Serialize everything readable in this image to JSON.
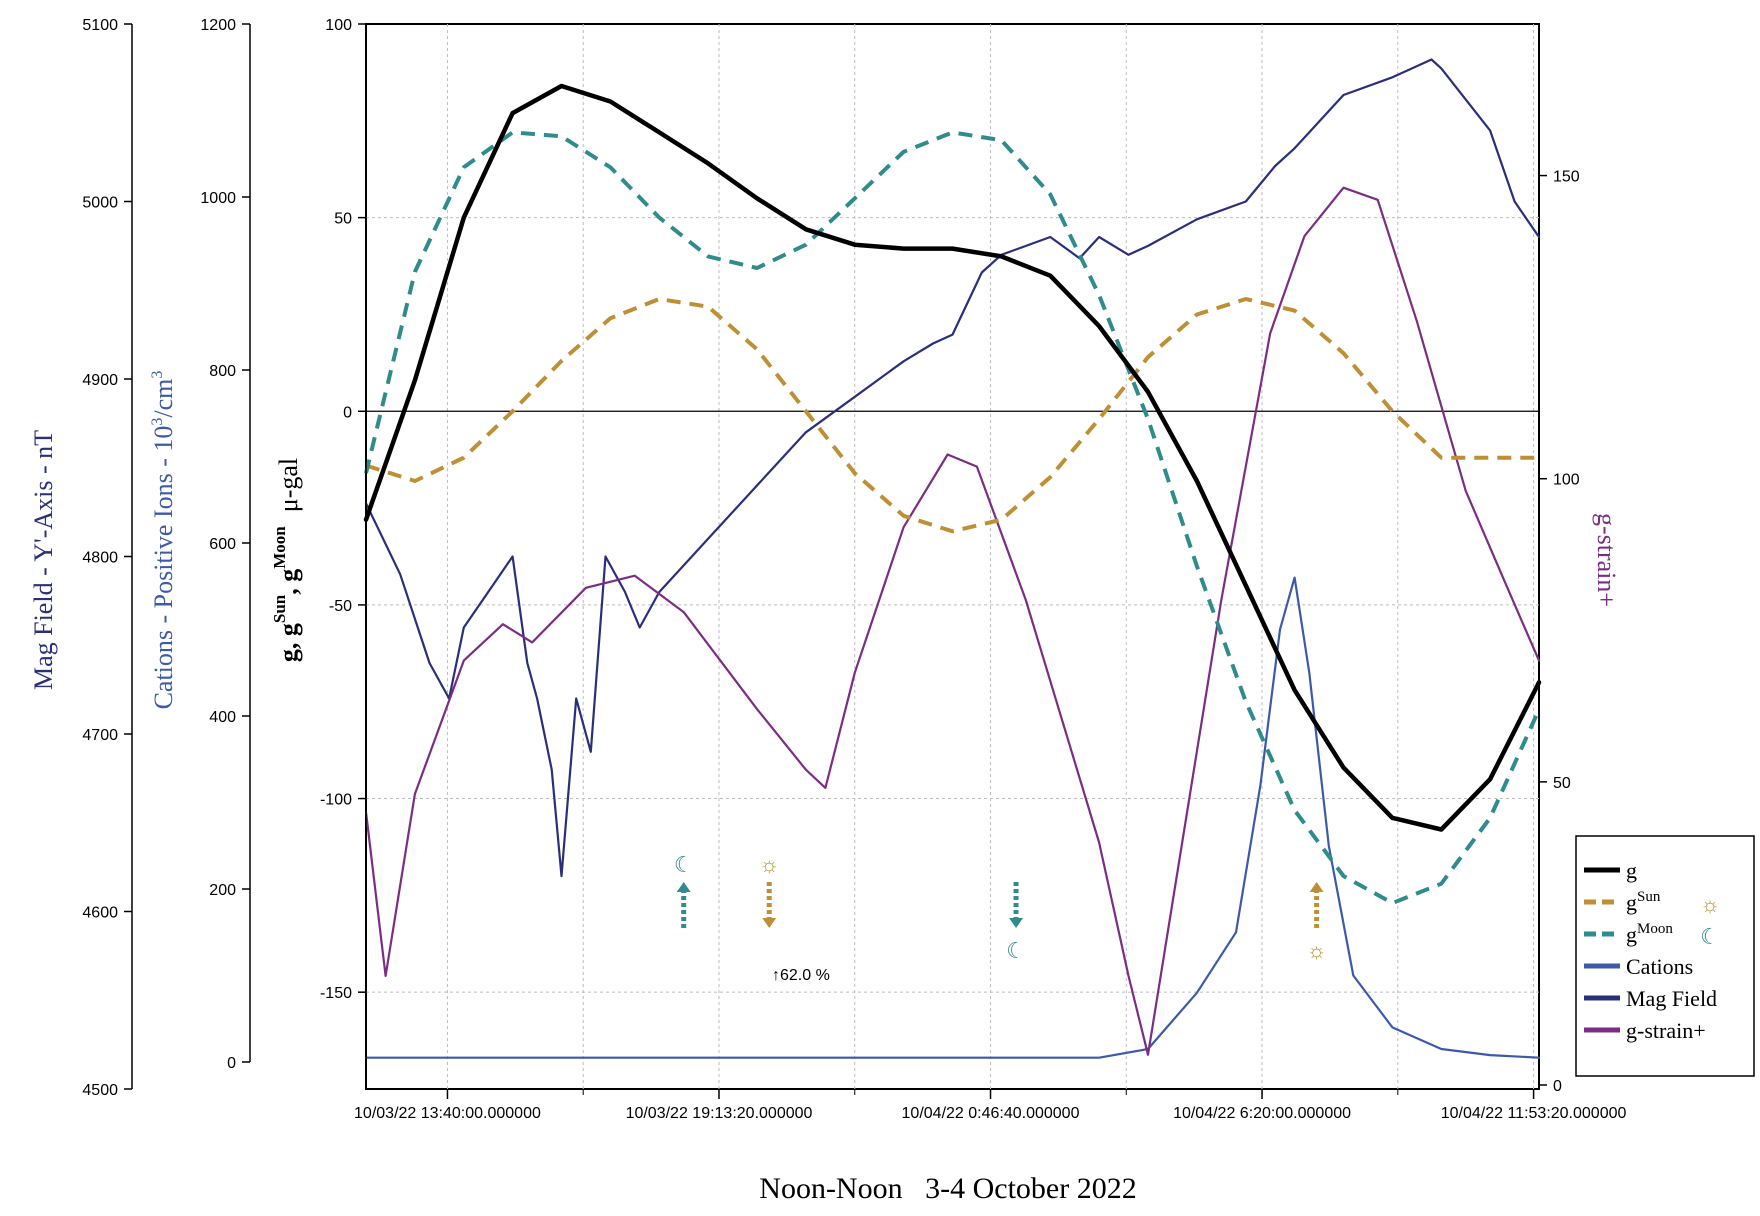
{
  "chart_data": {
    "type": "line",
    "title": "Noon-Noon   3-4 October 2022",
    "x_ticks": [
      "10/03/22 13:40:00.000000",
      "10/03/22 19:13:20.000000",
      "10/04/22  0:46:40.000000",
      "10/04/22  6:20:00.000000",
      "10/04/22 11:53:20.000000"
    ],
    "x_range_hours": [
      12,
      36
    ],
    "axes": {
      "mag": {
        "label": "Mag Field - Y'-Axis - nT",
        "ticks": [
          "4500",
          "4600",
          "4700",
          "4800",
          "4900",
          "5000",
          "5100"
        ],
        "range": [
          4500,
          5100
        ],
        "color": "#2b2f7a"
      },
      "cations": {
        "label_main": "Cations - Positive Ions - 10",
        "label_sup": "3",
        "label_tail": "/cm",
        "label_sup2": "3",
        "ticks": [
          "0",
          "200",
          "400",
          "600",
          "800",
          "1000",
          "1200"
        ],
        "range": [
          0,
          1200
        ],
        "color": "#3c5aa8"
      },
      "g": {
        "label_g": "g,  g",
        "label_sun_sup": "Sun",
        "label_moon_g": ",  g",
        "label_moon_sup": "Moon",
        "label_unit": "μ-gal",
        "ticks": [
          "-150",
          "-100",
          "-50",
          "0",
          "50",
          "100"
        ],
        "range": [
          -175,
          100
        ],
        "color": "#000000"
      },
      "strain": {
        "label": "g-strain+",
        "ticks": [
          "0",
          "50",
          "100",
          "150"
        ],
        "range": [
          0,
          175
        ],
        "color": "#7b2d84"
      }
    },
    "series": [
      {
        "name": "g",
        "color": "#000000",
        "dash": "solid",
        "axis": "g",
        "points": [
          [
            12,
            -28
          ],
          [
            13,
            8
          ],
          [
            14,
            50
          ],
          [
            15,
            77
          ],
          [
            16,
            84
          ],
          [
            17,
            80
          ],
          [
            18,
            72
          ],
          [
            19,
            64
          ],
          [
            20,
            55
          ],
          [
            21,
            47
          ],
          [
            22,
            43
          ],
          [
            23,
            42
          ],
          [
            24,
            42
          ],
          [
            25,
            40
          ],
          [
            26,
            35
          ],
          [
            27,
            22
          ],
          [
            28,
            5
          ],
          [
            29,
            -18
          ],
          [
            30,
            -45
          ],
          [
            31,
            -72
          ],
          [
            32,
            -92
          ],
          [
            33,
            -105
          ],
          [
            34,
            -108
          ],
          [
            35,
            -95
          ],
          [
            36,
            -70
          ]
        ]
      },
      {
        "name": "g^Sun",
        "color": "#bf8f35",
        "dash": "dash",
        "axis": "g",
        "points": [
          [
            12,
            -14
          ],
          [
            13,
            -18
          ],
          [
            14,
            -12
          ],
          [
            15,
            0
          ],
          [
            16,
            13
          ],
          [
            17,
            24
          ],
          [
            18,
            29
          ],
          [
            19,
            27
          ],
          [
            20,
            16
          ],
          [
            21,
            0
          ],
          [
            22,
            -16
          ],
          [
            23,
            -27
          ],
          [
            24,
            -31
          ],
          [
            25,
            -28
          ],
          [
            26,
            -17
          ],
          [
            27,
            -2
          ],
          [
            28,
            14
          ],
          [
            29,
            25
          ],
          [
            30,
            29
          ],
          [
            31,
            26
          ],
          [
            32,
            15
          ],
          [
            33,
            0
          ],
          [
            34,
            -12
          ],
          [
            36,
            -12
          ]
        ]
      },
      {
        "name": "g^Moon",
        "color": "#2f8b8c",
        "dash": "dash",
        "axis": "g",
        "points": [
          [
            12,
            -16
          ],
          [
            13,
            36
          ],
          [
            14,
            63
          ],
          [
            15,
            72
          ],
          [
            16,
            71
          ],
          [
            17,
            63
          ],
          [
            18,
            50
          ],
          [
            19,
            40
          ],
          [
            20,
            37
          ],
          [
            21,
            43
          ],
          [
            22,
            55
          ],
          [
            23,
            67
          ],
          [
            24,
            72
          ],
          [
            25,
            70
          ],
          [
            26,
            56
          ],
          [
            27,
            30
          ],
          [
            28,
            -2
          ],
          [
            29,
            -40
          ],
          [
            30,
            -75
          ],
          [
            31,
            -103
          ],
          [
            32,
            -120
          ],
          [
            33,
            -127
          ],
          [
            34,
            -122
          ],
          [
            35,
            -105
          ],
          [
            36,
            -77
          ]
        ]
      },
      {
        "name": "Cations",
        "color": "#3c5aa8",
        "dash": "solid",
        "axis": "cations",
        "points": [
          [
            12,
            5
          ],
          [
            27,
            5
          ],
          [
            28,
            15
          ],
          [
            29,
            80
          ],
          [
            29.8,
            150
          ],
          [
            30.3,
            320
          ],
          [
            30.7,
            500
          ],
          [
            31,
            560
          ],
          [
            31.3,
            450
          ],
          [
            31.7,
            250
          ],
          [
            32.2,
            100
          ],
          [
            33,
            40
          ],
          [
            34,
            15
          ],
          [
            35,
            8
          ],
          [
            36,
            5
          ]
        ]
      },
      {
        "name": "Mag Field",
        "color": "#2b2f7a",
        "dash": "solid",
        "axis": "mag",
        "points": [
          [
            12,
            4830
          ],
          [
            12.7,
            4790
          ],
          [
            13.3,
            4740
          ],
          [
            13.7,
            4720
          ],
          [
            14,
            4760
          ],
          [
            14.5,
            4780
          ],
          [
            15,
            4800
          ],
          [
            15.3,
            4740
          ],
          [
            15.5,
            4720
          ],
          [
            15.8,
            4680
          ],
          [
            16,
            4620
          ],
          [
            16.3,
            4720
          ],
          [
            16.6,
            4690
          ],
          [
            16.9,
            4800
          ],
          [
            17.3,
            4780
          ],
          [
            17.6,
            4760
          ],
          [
            18,
            4780
          ],
          [
            19,
            4810
          ],
          [
            20,
            4840
          ],
          [
            21,
            4870
          ],
          [
            22,
            4890
          ],
          [
            23,
            4910
          ],
          [
            23.6,
            4920
          ],
          [
            24,
            4925
          ],
          [
            24.6,
            4960
          ],
          [
            25,
            4970
          ],
          [
            26,
            4980
          ],
          [
            26.6,
            4968
          ],
          [
            27,
            4980
          ],
          [
            27.6,
            4970
          ],
          [
            28,
            4975
          ],
          [
            29,
            4990
          ],
          [
            30,
            5000
          ],
          [
            30.6,
            5020
          ],
          [
            31,
            5030
          ],
          [
            32,
            5060
          ],
          [
            33,
            5070
          ],
          [
            33.8,
            5080
          ],
          [
            34,
            5075
          ],
          [
            35,
            5040
          ],
          [
            35.5,
            5000
          ],
          [
            36,
            4980
          ]
        ]
      },
      {
        "name": "g-strain+",
        "color": "#7b2d84",
        "dash": "solid",
        "axis": "strain",
        "points": [
          [
            12,
            45
          ],
          [
            12.4,
            18
          ],
          [
            13,
            48
          ],
          [
            14,
            70
          ],
          [
            14.8,
            76
          ],
          [
            15.4,
            73
          ],
          [
            16.5,
            82
          ],
          [
            17.5,
            84
          ],
          [
            18.5,
            78
          ],
          [
            20,
            62
          ],
          [
            21,
            52
          ],
          [
            21.4,
            49
          ],
          [
            22,
            68
          ],
          [
            23,
            92
          ],
          [
            23.9,
            104
          ],
          [
            24.5,
            102
          ],
          [
            25.5,
            80
          ],
          [
            27,
            40
          ],
          [
            27.6,
            18
          ],
          [
            28,
            5
          ],
          [
            28.6,
            35
          ],
          [
            29.5,
            80
          ],
          [
            30.5,
            124
          ],
          [
            31.2,
            140
          ],
          [
            32,
            148
          ],
          [
            32.7,
            146
          ],
          [
            33.5,
            126
          ],
          [
            34.5,
            98
          ],
          [
            35.3,
            83
          ],
          [
            36,
            70
          ]
        ]
      }
    ],
    "annotations": {
      "percent_label": "↑62.0 %",
      "moon_symbol": "☾",
      "sun_symbol": "☼"
    },
    "legend": {
      "position": "bottom-right",
      "items": [
        {
          "label": "g",
          "sup": "",
          "symbol": "",
          "color": "#000000",
          "dash": "solid",
          "width": 5
        },
        {
          "label": "g",
          "sup": "Sun",
          "symbol": "☼",
          "color": "#bf8f35",
          "dash": "dash",
          "width": 5
        },
        {
          "label": "g",
          "sup": "Moon",
          "symbol": "☾",
          "color": "#2f8b8c",
          "dash": "dash",
          "width": 5
        },
        {
          "label": "Cations",
          "sup": "",
          "symbol": "",
          "color": "#3c5aa8",
          "dash": "solid",
          "width": 5
        },
        {
          "label": "Mag Field",
          "sup": "",
          "symbol": "",
          "color": "#2b2f7a",
          "dash": "solid",
          "width": 5
        },
        {
          "label": "g-strain+",
          "sup": "",
          "symbol": "",
          "color": "#7b2d84",
          "dash": "solid",
          "width": 5
        }
      ]
    },
    "grid": true
  }
}
